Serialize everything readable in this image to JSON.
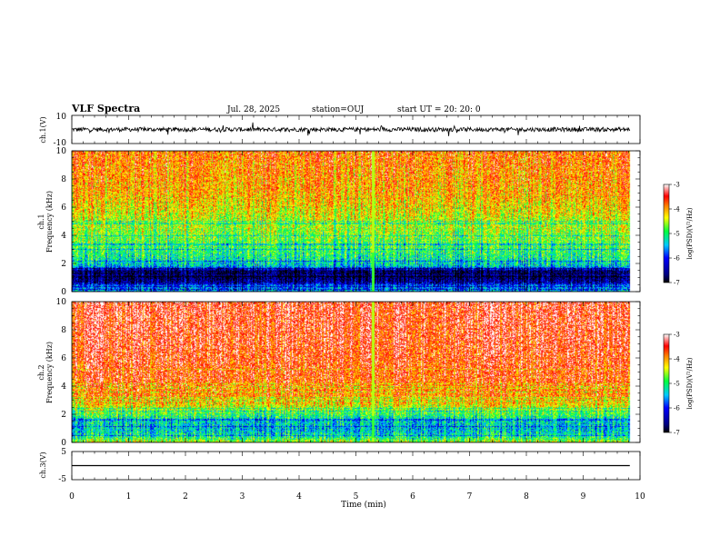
{
  "header": {
    "title": "VLF Spectra",
    "date": "Jul. 28, 2025",
    "station": "station=OUJ",
    "start": "start UT =  20: 20: 0"
  },
  "chart_data": [
    {
      "id": "ch1-wave",
      "type": "line",
      "ylabel": "ch.1(V)",
      "ylim": [
        -10,
        10
      ],
      "ytick_labels": [
        "10",
        "-10"
      ],
      "x_range_min": [
        0,
        9.82
      ],
      "baseline": 0,
      "noise_amplitude": 1.5,
      "spike_amplitude": 4
    },
    {
      "id": "ch1-spec",
      "type": "heatmap",
      "ylabel_line1": "ch.1",
      "ylabel_line2": "Frequency (kHz)",
      "ylim": [
        0,
        10
      ],
      "ytick_labels": [
        "0",
        "2",
        "4",
        "6",
        "8",
        "10"
      ],
      "x_range_min": [
        0,
        9.82
      ],
      "gap_minute": 5.3,
      "profile": [
        {
          "f": 0.0,
          "v": 0.35
        },
        {
          "f": 0.4,
          "v": 0.3
        },
        {
          "f": 0.6,
          "v": 0.12
        },
        {
          "f": 1.0,
          "v": 0.06
        },
        {
          "f": 1.5,
          "v": 0.12
        },
        {
          "f": 1.8,
          "v": 0.4
        },
        {
          "f": 2.5,
          "v": 0.48
        },
        {
          "f": 3.5,
          "v": 0.55
        },
        {
          "f": 5.0,
          "v": 0.63
        },
        {
          "f": 7.0,
          "v": 0.74
        },
        {
          "f": 10.0,
          "v": 0.8
        }
      ],
      "colorbar": {
        "label": "log(PSD)(V²/Hz)",
        "range": [
          -7,
          -3
        ],
        "tick_labels": [
          "-3",
          "-4",
          "-5",
          "-6",
          "-7"
        ]
      }
    },
    {
      "id": "ch2-spec",
      "type": "heatmap",
      "ylabel_line1": "ch.2",
      "ylabel_line2": "Frequency (kHz)",
      "ylim": [
        0,
        10
      ],
      "ytick_labels": [
        "0",
        "2",
        "4",
        "6",
        "8",
        "10"
      ],
      "x_range_min": [
        0,
        9.82
      ],
      "gap_minute": 5.3,
      "profile": [
        {
          "f": 0.0,
          "v": 0.62
        },
        {
          "f": 0.3,
          "v": 0.5
        },
        {
          "f": 0.8,
          "v": 0.4
        },
        {
          "f": 1.5,
          "v": 0.42
        },
        {
          "f": 2.2,
          "v": 0.58
        },
        {
          "f": 3.0,
          "v": 0.76
        },
        {
          "f": 4.5,
          "v": 0.84
        },
        {
          "f": 7.0,
          "v": 0.88
        },
        {
          "f": 10.0,
          "v": 0.9
        }
      ],
      "colorbar": {
        "label": "log(PSD)(V²/Hz)",
        "range": [
          -7,
          -3
        ],
        "tick_labels": [
          "-3",
          "-4",
          "-5",
          "-6",
          "-7"
        ]
      }
    },
    {
      "id": "ch3-wave",
      "type": "line",
      "ylabel": "ch.3(V)",
      "ylim": [
        -5,
        5
      ],
      "ytick_labels": [
        "5",
        "-5"
      ],
      "x_range_min": [
        0,
        9.82
      ],
      "baseline": 0,
      "noise_amplitude": 0,
      "spike_amplitude": 0
    }
  ],
  "xaxis": {
    "label": "Time (min)",
    "range": [
      0,
      10
    ],
    "tick_labels": [
      "0",
      "1",
      "2",
      "3",
      "4",
      "5",
      "6",
      "7",
      "8",
      "9",
      "10"
    ]
  }
}
